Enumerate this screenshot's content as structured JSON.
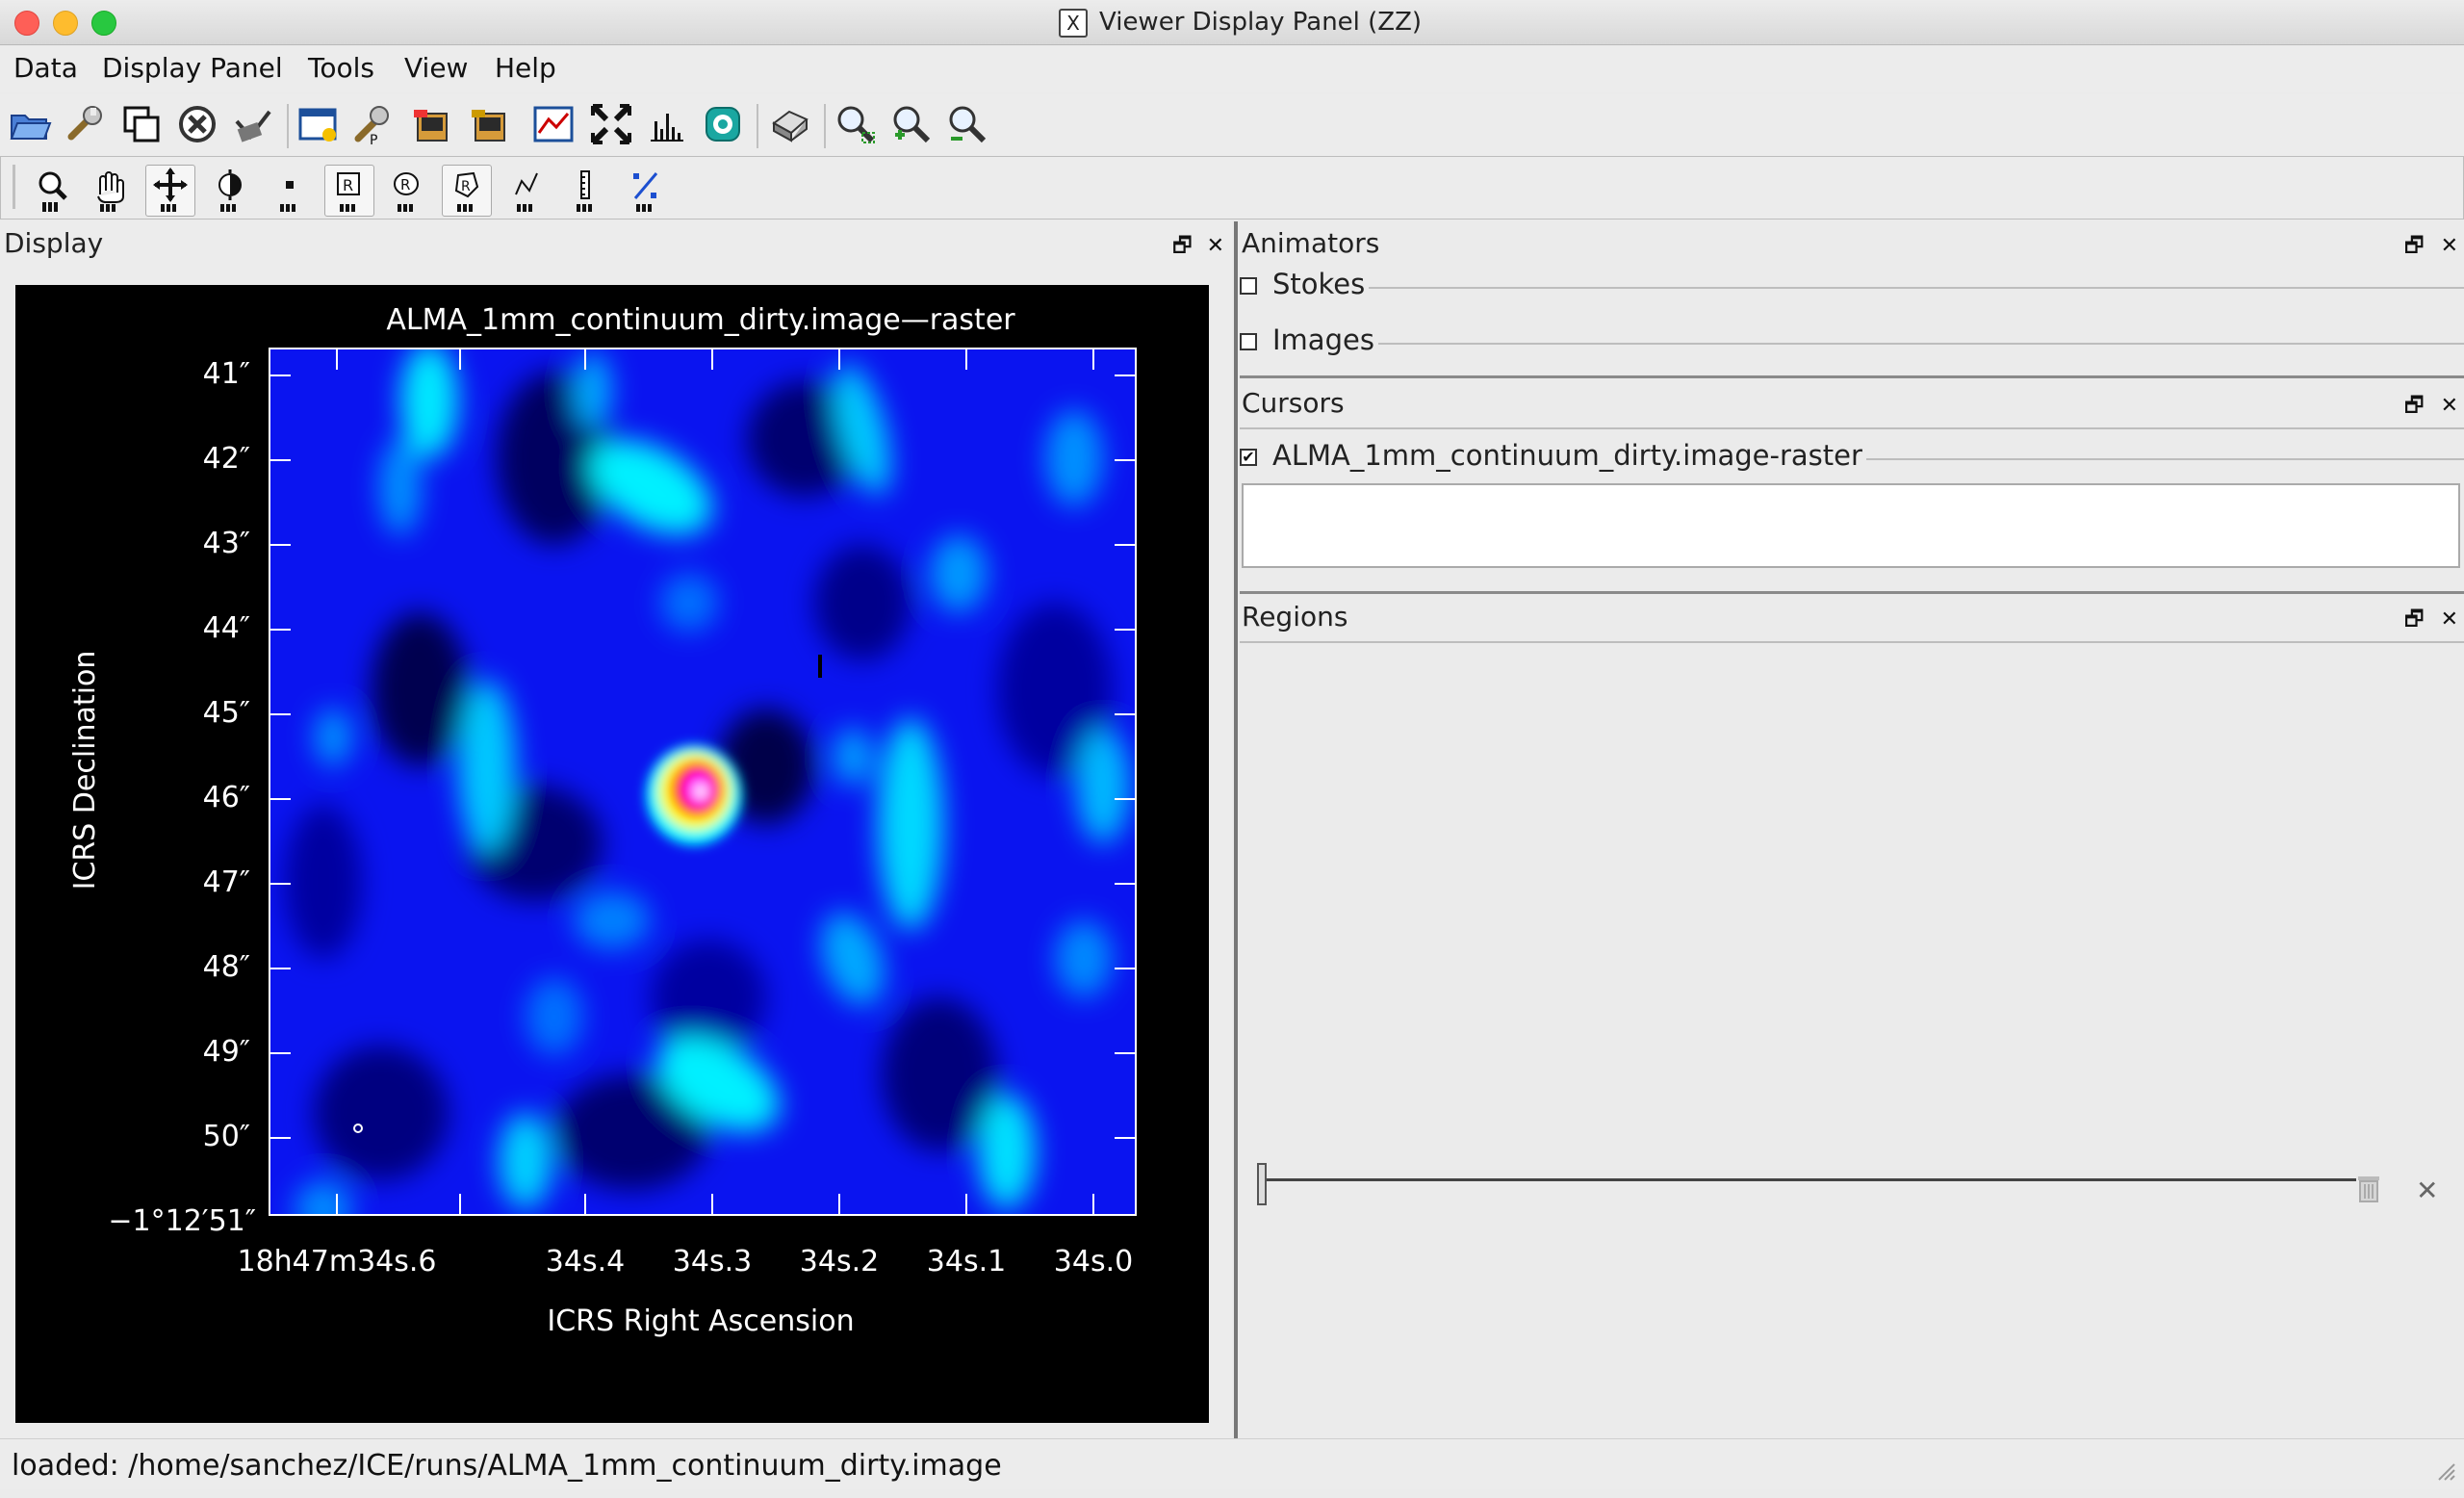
{
  "window": {
    "title": "Viewer Display Panel (ZZ)"
  },
  "menu": [
    "Data",
    "Display Panel",
    "Tools",
    "View",
    "Help"
  ],
  "display_panel": {
    "title": "Display",
    "plot": {
      "title": "ALMA_1mm_continuum_dirty.image—raster",
      "y_axis_label": "ICRS Declination",
      "x_axis_label": "ICRS Right Ascension",
      "y_ticks": [
        "41″",
        "42″",
        "43″",
        "44″",
        "45″",
        "46″",
        "47″",
        "48″",
        "49″",
        "50″",
        "−1°12′51″"
      ],
      "x_ticks": [
        "18h47m34s.6",
        "34s.4",
        "34s.3",
        "34s.2",
        "34s.1",
        "34s.0"
      ],
      "colormap": [
        "#000080",
        "#0000ff",
        "#00ffff",
        "#ffff00",
        "#ff0000",
        "#ff00ff",
        "#ffffff"
      ]
    }
  },
  "animators": {
    "title": "Animators",
    "stokes_label": "Stokes",
    "images_label": "Images"
  },
  "cursors": {
    "title": "Cursors",
    "item_label": "ALMA_1mm_continuum_dirty.image-raster",
    "item_checked": true
  },
  "regions": {
    "title": "Regions"
  },
  "status": {
    "text": "loaded: /home/sanchez/ICE/runs/ALMA_1mm_continuum_dirty.image"
  }
}
